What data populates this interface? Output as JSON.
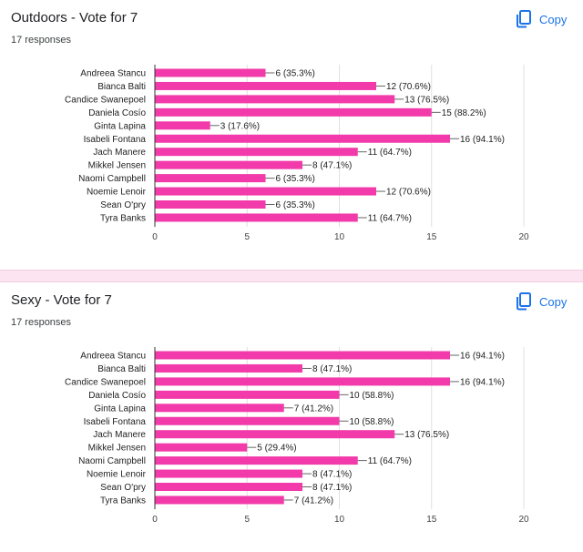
{
  "icons": {
    "copy": "copy-icon"
  },
  "colors": {
    "bar": "#f23aaa",
    "accent": "#1a73e8",
    "divider": "#fce4f1"
  },
  "questions": [
    {
      "title": "Outdoors - Vote for 7",
      "responses": "17 responses",
      "copy_label": "Copy"
    },
    {
      "title": "Sexy - Vote for 7",
      "responses": "17 responses",
      "copy_label": "Copy"
    }
  ],
  "chart_data": [
    {
      "type": "bar",
      "orientation": "horizontal",
      "title": "Outdoors - Vote for 7",
      "categories": [
        "Andreea Stancu",
        "Bianca Balti",
        "Candice Swanepoel",
        "Daniela Cosío",
        "Ginta Lapina",
        "Isabeli Fontana",
        "Jach Manere",
        "Mikkel Jensen",
        "Naomi Campbell",
        "Noemie Lenoir",
        "Sean O'pry",
        "Tyra Banks"
      ],
      "values": [
        6,
        12,
        13,
        15,
        3,
        16,
        11,
        8,
        6,
        12,
        6,
        11
      ],
      "data_labels": [
        "6 (35.3%)",
        "12 (70.6%)",
        "13 (76.5%)",
        "15 (88.2%)",
        "3 (17.6%)",
        "16 (94.1%)",
        "11 (64.7%)",
        "8 (47.1%)",
        "6 (35.3%)",
        "12 (70.6%)",
        "6 (35.3%)",
        "11 (64.7%)"
      ],
      "xlim": [
        0,
        20
      ],
      "xticks": [
        0,
        5,
        10,
        15,
        20
      ],
      "grid": true,
      "color": "#f23aaa"
    },
    {
      "type": "bar",
      "orientation": "horizontal",
      "title": "Sexy - Vote for 7",
      "categories": [
        "Andreea Stancu",
        "Bianca Balti",
        "Candice Swanepoel",
        "Daniela Cosío",
        "Ginta Lapina",
        "Isabeli Fontana",
        "Jach Manere",
        "Mikkel Jensen",
        "Naomi Campbell",
        "Noemie Lenoir",
        "Sean O'pry",
        "Tyra Banks"
      ],
      "values": [
        16,
        8,
        16,
        10,
        7,
        10,
        13,
        5,
        11,
        8,
        8,
        7
      ],
      "data_labels": [
        "16 (94.1%)",
        "8 (47.1%)",
        "16 (94.1%)",
        "10 (58.8%)",
        "7 (41.2%)",
        "10 (58.8%)",
        "13 (76.5%)",
        "5 (29.4%)",
        "11 (64.7%)",
        "8 (47.1%)",
        "8 (47.1%)",
        "7 (41.2%)"
      ],
      "xlim": [
        0,
        20
      ],
      "xticks": [
        0,
        5,
        10,
        15,
        20
      ],
      "grid": true,
      "color": "#f23aaa"
    }
  ]
}
